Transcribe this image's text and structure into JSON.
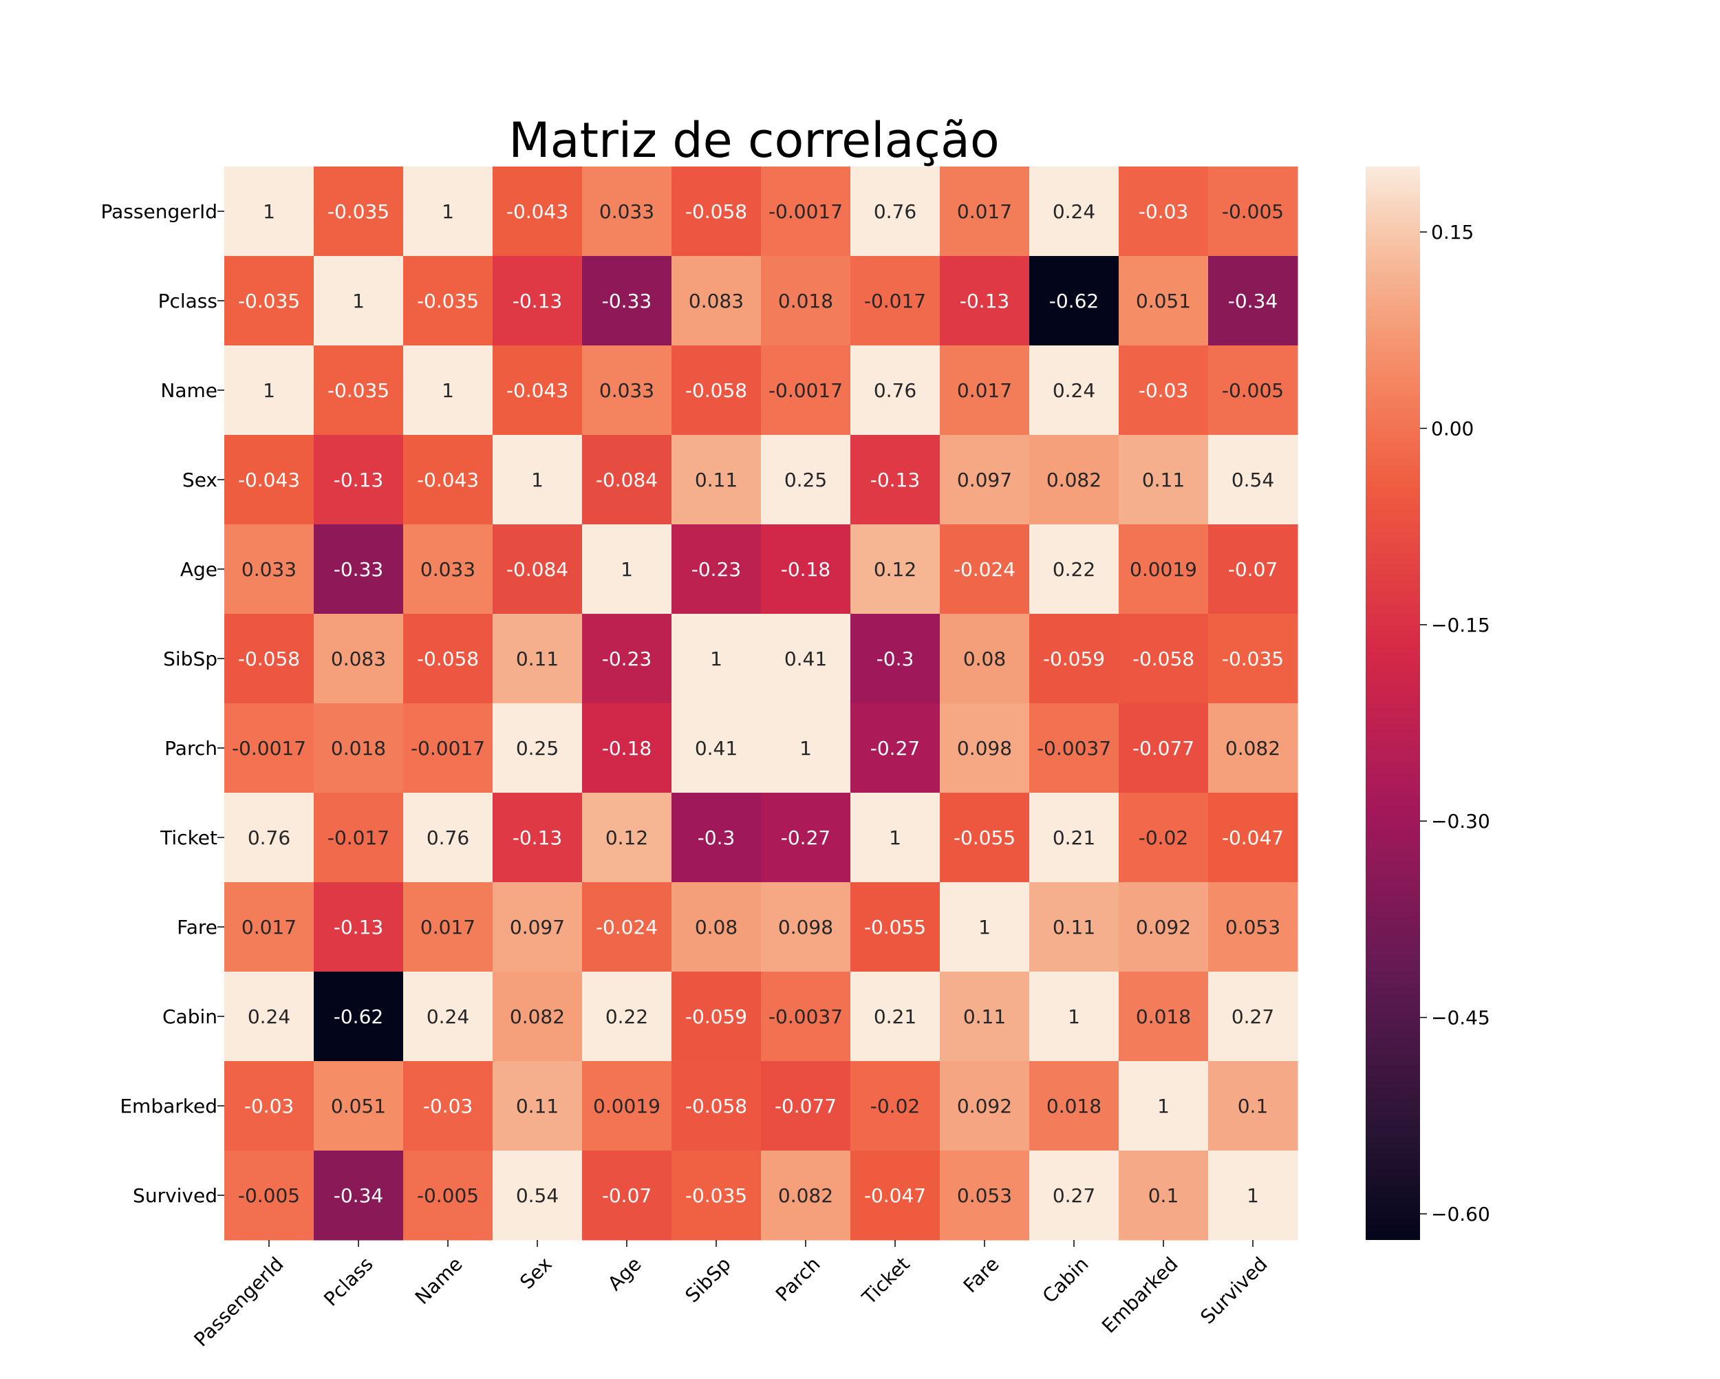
{
  "chart_data": {
    "type": "heatmap",
    "title": "Matriz de correlação",
    "xlabel": "",
    "ylabel": "",
    "row_labels": [
      "PassengerId",
      "Pclass",
      "Name",
      "Sex",
      "Age",
      "SibSp",
      "Parch",
      "Ticket",
      "Fare",
      "Cabin",
      "Embarked",
      "Survived"
    ],
    "col_labels": [
      "PassengerId",
      "Pclass",
      "Name",
      "Sex",
      "Age",
      "SibSp",
      "Parch",
      "Ticket",
      "Fare",
      "Cabin",
      "Embarked",
      "Survived"
    ],
    "values": [
      [
        1,
        -0.035,
        1,
        -0.043,
        0.033,
        -0.058,
        -0.0017,
        0.76,
        0.017,
        0.24,
        -0.03,
        -0.005
      ],
      [
        -0.035,
        1,
        -0.035,
        -0.13,
        -0.33,
        0.083,
        0.018,
        -0.017,
        -0.13,
        -0.62,
        0.051,
        -0.34
      ],
      [
        1,
        -0.035,
        1,
        -0.043,
        0.033,
        -0.058,
        -0.0017,
        0.76,
        0.017,
        0.24,
        -0.03,
        -0.005
      ],
      [
        -0.043,
        -0.13,
        -0.043,
        1,
        -0.084,
        0.11,
        0.25,
        -0.13,
        0.097,
        0.082,
        0.11,
        0.54
      ],
      [
        0.033,
        -0.33,
        0.033,
        -0.084,
        1,
        -0.23,
        -0.18,
        0.12,
        -0.024,
        0.22,
        0.0019,
        -0.07
      ],
      [
        -0.058,
        0.083,
        -0.058,
        0.11,
        -0.23,
        1,
        0.41,
        -0.3,
        0.08,
        -0.059,
        -0.058,
        -0.035
      ],
      [
        -0.0017,
        0.018,
        -0.0017,
        0.25,
        -0.18,
        0.41,
        1,
        -0.27,
        0.098,
        -0.0037,
        -0.077,
        0.082
      ],
      [
        0.76,
        -0.017,
        0.76,
        -0.13,
        0.12,
        -0.3,
        -0.27,
        1,
        -0.055,
        0.21,
        -0.02,
        -0.047
      ],
      [
        0.017,
        -0.13,
        0.017,
        0.097,
        -0.024,
        0.08,
        0.098,
        -0.055,
        1,
        0.11,
        0.092,
        0.053
      ],
      [
        0.24,
        -0.62,
        0.24,
        0.082,
        0.22,
        -0.059,
        -0.0037,
        0.21,
        0.11,
        1,
        0.018,
        0.27
      ],
      [
        -0.03,
        0.051,
        -0.03,
        0.11,
        0.0019,
        -0.058,
        -0.077,
        -0.02,
        0.092,
        0.018,
        1,
        0.1
      ],
      [
        -0.005,
        -0.34,
        -0.005,
        0.54,
        -0.07,
        -0.035,
        0.082,
        -0.047,
        0.053,
        0.27,
        0.1,
        1
      ]
    ],
    "colormap": "rocket",
    "color_range": [
      -0.62,
      0.2
    ],
    "colorbar_ticks": [
      "0.15",
      "0.00",
      "−0.15",
      "−0.30",
      "−0.45",
      "−0.60"
    ],
    "colorbar_tick_values": [
      0.15,
      0.0,
      -0.15,
      -0.3,
      -0.45,
      -0.6
    ],
    "annotations": true,
    "grid": false,
    "colorbar_position": "right"
  }
}
